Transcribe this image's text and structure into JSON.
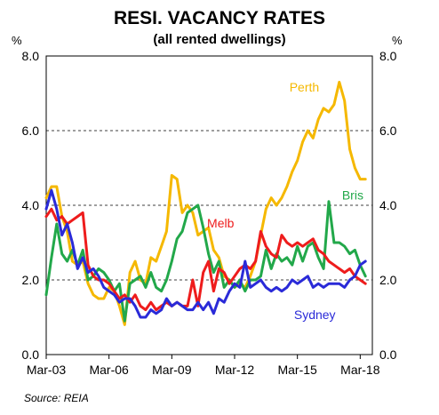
{
  "chart_data": {
    "type": "line",
    "title": "RESI. VACANCY RATES",
    "subtitle": "(all rented dwellings)",
    "ylabel_left": "%",
    "ylabel_right": "%",
    "source": "Source: REIA",
    "ylim": [
      0,
      8
    ],
    "yticks": [
      "0.0",
      "2.0",
      "4.0",
      "6.0",
      "8.0"
    ],
    "xlim": [
      2003.17,
      2018.75
    ],
    "xtick_labels": [
      "Mar-03",
      "Mar-06",
      "Mar-09",
      "Mar-12",
      "Mar-15",
      "Mar-18"
    ],
    "xtick_values": [
      2003.17,
      2006.17,
      2009.17,
      2012.17,
      2015.17,
      2018.17
    ],
    "grid": "horizontal dashed",
    "series": [
      {
        "name": "Perth",
        "color": "#f5b800",
        "x": [
          2003.17,
          2003.42,
          2003.67,
          2003.92,
          2004.17,
          2004.42,
          2004.67,
          2004.92,
          2005.17,
          2005.42,
          2005.67,
          2005.92,
          2006.17,
          2006.42,
          2006.67,
          2006.92,
          2007.17,
          2007.42,
          2007.67,
          2007.92,
          2008.17,
          2008.42,
          2008.67,
          2008.92,
          2009.17,
          2009.42,
          2009.67,
          2009.92,
          2010.17,
          2010.42,
          2010.67,
          2010.92,
          2011.17,
          2011.42,
          2011.67,
          2011.92,
          2012.17,
          2012.42,
          2012.67,
          2012.92,
          2013.17,
          2013.42,
          2013.67,
          2013.92,
          2014.17,
          2014.42,
          2014.67,
          2014.92,
          2015.17,
          2015.42,
          2015.67,
          2015.92,
          2016.17,
          2016.42,
          2016.67,
          2016.92,
          2017.17,
          2017.42,
          2017.67,
          2017.92,
          2018.17,
          2018.42
        ],
        "values": [
          4.2,
          4.5,
          4.5,
          3.7,
          3.3,
          2.5,
          2.4,
          2.5,
          1.9,
          1.6,
          1.5,
          1.5,
          1.8,
          1.7,
          1.3,
          0.8,
          2.2,
          2.5,
          2.0,
          1.9,
          2.6,
          2.5,
          2.9,
          3.3,
          4.8,
          4.7,
          3.8,
          4.0,
          3.8,
          3.2,
          3.3,
          3.4,
          2.8,
          2.6,
          2.1,
          2.0,
          1.8,
          1.9,
          1.8,
          2.1,
          2.5,
          3.2,
          3.9,
          4.2,
          4.0,
          4.2,
          4.5,
          4.9,
          5.2,
          5.7,
          6.0,
          5.8,
          6.3,
          6.6,
          6.5,
          6.7,
          7.3,
          6.8,
          5.5,
          5.0,
          4.7,
          4.7
        ]
      },
      {
        "name": "Bris",
        "color": "#22a84a",
        "x": [
          2003.17,
          2003.42,
          2003.67,
          2003.92,
          2004.17,
          2004.42,
          2004.67,
          2004.92,
          2005.17,
          2005.42,
          2005.67,
          2005.92,
          2006.17,
          2006.42,
          2006.67,
          2006.92,
          2007.17,
          2007.42,
          2007.67,
          2007.92,
          2008.17,
          2008.42,
          2008.67,
          2008.92,
          2009.17,
          2009.42,
          2009.67,
          2009.92,
          2010.17,
          2010.42,
          2010.67,
          2010.92,
          2011.17,
          2011.42,
          2011.67,
          2011.92,
          2012.17,
          2012.42,
          2012.67,
          2012.92,
          2013.17,
          2013.42,
          2013.67,
          2013.92,
          2014.17,
          2014.42,
          2014.67,
          2014.92,
          2015.17,
          2015.42,
          2015.67,
          2015.92,
          2016.17,
          2016.42,
          2016.67,
          2016.92,
          2017.17,
          2017.42,
          2017.67,
          2017.92,
          2018.17,
          2018.42
        ],
        "values": [
          1.6,
          2.6,
          3.5,
          2.7,
          2.5,
          2.8,
          2.4,
          2.8,
          2.0,
          2.1,
          2.3,
          2.2,
          2.0,
          1.7,
          1.9,
          0.9,
          1.9,
          2.0,
          2.1,
          1.8,
          2.2,
          1.8,
          1.7,
          2.0,
          2.5,
          3.1,
          3.3,
          3.8,
          3.9,
          4.0,
          3.4,
          2.7,
          2.2,
          2.5,
          1.8,
          2.0,
          1.8,
          2.0,
          1.7,
          2.0,
          2.0,
          2.1,
          2.8,
          2.3,
          2.7,
          2.5,
          2.6,
          2.4,
          2.9,
          2.5,
          2.9,
          3.0,
          2.6,
          2.3,
          4.1,
          3.0,
          3.0,
          2.9,
          2.7,
          2.8,
          2.4,
          2.1
        ]
      },
      {
        "name": "Melb",
        "color": "#ee1c1c",
        "x": [
          2003.17,
          2003.42,
          2003.67,
          2003.92,
          2004.17,
          2004.42,
          2004.67,
          2004.92,
          2005.17,
          2005.42,
          2005.67,
          2005.92,
          2006.17,
          2006.42,
          2006.67,
          2006.92,
          2007.17,
          2007.42,
          2007.67,
          2007.92,
          2008.17,
          2008.42,
          2008.67,
          2008.92,
          2009.17,
          2009.42,
          2009.67,
          2009.92,
          2010.17,
          2010.42,
          2010.67,
          2010.92,
          2011.17,
          2011.42,
          2011.67,
          2011.92,
          2012.17,
          2012.42,
          2012.67,
          2012.92,
          2013.17,
          2013.42,
          2013.67,
          2013.92,
          2014.17,
          2014.42,
          2014.67,
          2014.92,
          2015.17,
          2015.42,
          2015.67,
          2015.92,
          2016.17,
          2016.42,
          2016.67,
          2016.92,
          2017.17,
          2017.42,
          2017.67,
          2017.92,
          2018.17,
          2018.42
        ],
        "values": [
          3.7,
          3.9,
          3.6,
          3.7,
          3.5,
          3.6,
          3.7,
          3.8,
          2.4,
          2.1,
          2.0,
          2.0,
          1.9,
          1.7,
          1.5,
          1.6,
          1.4,
          1.6,
          1.3,
          1.2,
          1.4,
          1.2,
          1.3,
          1.4,
          1.3,
          1.4,
          1.3,
          1.3,
          2.0,
          1.3,
          2.2,
          2.5,
          1.7,
          2.3,
          2.2,
          1.9,
          2.1,
          2.3,
          2.4,
          2.3,
          2.5,
          3.3,
          2.9,
          2.7,
          2.6,
          3.2,
          3.0,
          2.9,
          3.0,
          2.9,
          3.0,
          3.1,
          2.8,
          2.7,
          2.5,
          2.4,
          2.3,
          2.2,
          2.3,
          2.1,
          2.0,
          1.9
        ]
      },
      {
        "name": "Sydney",
        "color": "#2a2ad8",
        "x": [
          2003.17,
          2003.42,
          2003.67,
          2003.92,
          2004.17,
          2004.42,
          2004.67,
          2004.92,
          2005.17,
          2005.42,
          2005.67,
          2005.92,
          2006.17,
          2006.42,
          2006.67,
          2006.92,
          2007.17,
          2007.42,
          2007.67,
          2007.92,
          2008.17,
          2008.42,
          2008.67,
          2008.92,
          2009.17,
          2009.42,
          2009.67,
          2009.92,
          2010.17,
          2010.42,
          2010.67,
          2010.92,
          2011.17,
          2011.42,
          2011.67,
          2011.92,
          2012.17,
          2012.42,
          2012.67,
          2012.92,
          2013.17,
          2013.42,
          2013.67,
          2013.92,
          2014.17,
          2014.42,
          2014.67,
          2014.92,
          2015.17,
          2015.42,
          2015.67,
          2015.92,
          2016.17,
          2016.42,
          2016.67,
          2016.92,
          2017.17,
          2017.42,
          2017.67,
          2017.92,
          2018.17,
          2018.42
        ],
        "values": [
          3.9,
          4.4,
          3.9,
          3.2,
          3.5,
          3.0,
          2.3,
          2.6,
          2.2,
          2.3,
          2.1,
          1.8,
          1.7,
          1.6,
          1.4,
          1.5,
          1.5,
          1.3,
          1.0,
          1.0,
          1.2,
          1.1,
          1.2,
          1.5,
          1.3,
          1.4,
          1.3,
          1.2,
          1.2,
          1.4,
          1.2,
          1.4,
          1.1,
          1.5,
          1.4,
          1.7,
          1.9,
          1.8,
          2.5,
          1.8,
          1.9,
          2.0,
          1.8,
          1.7,
          1.8,
          1.7,
          1.8,
          2.0,
          1.9,
          2.0,
          2.1,
          1.8,
          1.9,
          1.8,
          1.9,
          1.9,
          1.9,
          1.8,
          2.0,
          2.1,
          2.4,
          2.5
        ]
      }
    ],
    "series_labels": [
      {
        "name": "Perth"
      },
      {
        "name": "Bris"
      },
      {
        "name": "Melb"
      },
      {
        "name": "Sydney"
      }
    ]
  }
}
